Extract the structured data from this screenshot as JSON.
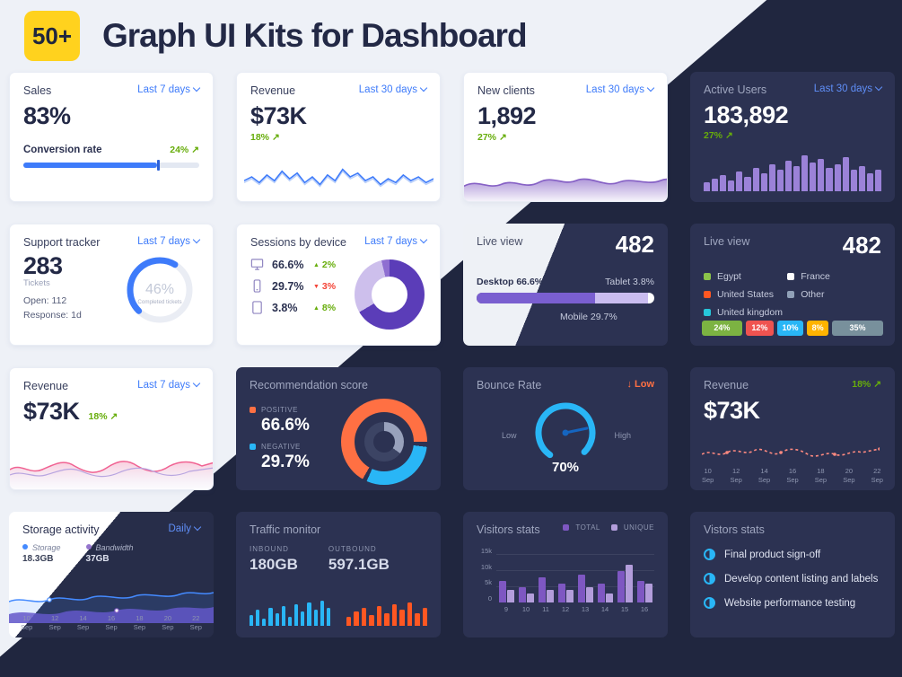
{
  "header": {
    "badge": "50+",
    "title": "Graph UI Kits for Dashboard"
  },
  "theme": {
    "accent_blue": "#3e7bfa",
    "green": "#67ad0b",
    "red": "#f44336",
    "purple": "#7e57c2",
    "orange": "#ff7043",
    "light_bg": "#eef1f7",
    "dark_bg": "#20263f",
    "card_dark": "#2c3252",
    "badge_yellow": "#ffd21e"
  },
  "cards": {
    "sales": {
      "title": "Sales",
      "period": "Last 7 days",
      "value": "83%",
      "metric_label": "Conversion rate",
      "metric_change": "24%",
      "progress_pct": 76
    },
    "revenue_line": {
      "title": "Revenue",
      "period": "Last 30 days",
      "value": "$73K",
      "change": "18%"
    },
    "new_clients": {
      "title": "New clients",
      "period": "Last 30 days",
      "value": "1,892",
      "change": "27%"
    },
    "active_users": {
      "title": "Active Users",
      "period": "Last 30 days",
      "value": "183,892",
      "change": "27%",
      "bars": [
        10,
        14,
        18,
        12,
        22,
        16,
        26,
        20,
        30,
        24,
        34,
        28,
        40,
        32,
        36,
        26,
        30,
        38,
        24,
        28,
        20,
        24
      ]
    },
    "support": {
      "title": "Support tracker",
      "period": "Last 7 days",
      "value": "283",
      "value_label": "Tickets",
      "open": "Open: 112",
      "response": "Response: 1d",
      "gauge_value": "46%",
      "gauge_label": "Completed tickets",
      "gauge_pct": 46
    },
    "sessions": {
      "title": "Sessions by device",
      "period": "Last 7 days",
      "items": [
        {
          "device": "desktop",
          "value": "66.6%",
          "change": "2%",
          "direction": "up"
        },
        {
          "device": "mobile",
          "value": "29.7%",
          "change": "3%",
          "direction": "down"
        },
        {
          "device": "tablet",
          "value": "3.8%",
          "change": "8%",
          "direction": "up"
        }
      ],
      "donut": {
        "desktop": 66.6,
        "mobile": 29.7,
        "tablet": 3.8
      }
    },
    "live_view_devices": {
      "title": "Live view",
      "value": "482",
      "desktop_label": "Desktop 66.6%",
      "tablet_label": "Tablet 3.8%",
      "mobile_label": "Mobile 29.7%",
      "segments": [
        {
          "name": "Desktop",
          "pct": 66.6,
          "color": "#7a5fd0"
        },
        {
          "name": "Mobile",
          "pct": 29.7,
          "color": "#cabdf0"
        },
        {
          "name": "Tablet",
          "pct": 3.8,
          "color": "#ffffff"
        }
      ]
    },
    "live_view_countries": {
      "title": "Live view",
      "value": "482",
      "legend": [
        {
          "label": "Egypt",
          "color": "#8bc34a"
        },
        {
          "label": "France",
          "color": "#ffffff"
        },
        {
          "label": "United States",
          "color": "#ff5722"
        },
        {
          "label": "Other",
          "color": "#90a0b7"
        },
        {
          "label": "United kingdom",
          "color": "#26c6da"
        }
      ],
      "chips": [
        {
          "label": "24%",
          "value": 24,
          "color": "#7cb342"
        },
        {
          "label": "12%",
          "value": 12,
          "color": "#ef5350"
        },
        {
          "label": "10%",
          "value": 10,
          "color": "#29b6f6"
        },
        {
          "label": "8%",
          "value": 8,
          "color": "#ffb300"
        },
        {
          "label": "35%",
          "value": 35,
          "color": "#78909c"
        }
      ]
    },
    "revenue_area": {
      "title": "Revenue",
      "period": "Last 7 days",
      "value": "$73K",
      "change": "18%"
    },
    "recommendation": {
      "title": "Recommendation score",
      "positive_label": "POSITIVE",
      "positive_value": "66.6%",
      "negative_label": "NEGATIVE",
      "negative_value": "29.7%"
    },
    "bounce": {
      "title": "Bounce Rate",
      "status": "Low",
      "low_label": "Low",
      "high_label": "High",
      "value": "70%",
      "pct": 70
    },
    "revenue_dark": {
      "title": "Revenue",
      "change": "18%",
      "value": "$73K",
      "x_days": [
        "10",
        "12",
        "14",
        "16",
        "18",
        "20",
        "22"
      ],
      "month": "Sep"
    },
    "storage": {
      "title": "Storage activity",
      "period": "Daily",
      "series": [
        {
          "label": "Storage",
          "value": "18.3GB",
          "color": "#448aff"
        },
        {
          "label": "Bandwidth",
          "value": "37GB",
          "color": "#9575cd"
        }
      ],
      "x_days": [
        "10",
        "12",
        "14",
        "16",
        "18",
        "20",
        "22"
      ],
      "month": "Sep"
    },
    "traffic": {
      "title": "Traffic monitor",
      "inbound_label": "INBOUND",
      "inbound_value": "180GB",
      "outbound_label": "OUTBOUND",
      "outbound_value": "597.1GB",
      "inbound_bars": [
        12,
        18,
        8,
        20,
        14,
        22,
        10,
        24,
        16,
        26,
        18,
        28,
        20
      ],
      "outbound_bars": [
        10,
        16,
        20,
        12,
        22,
        14,
        24,
        18,
        26,
        14,
        20
      ]
    },
    "visitors": {
      "title": "Visitors stats",
      "legend": [
        {
          "label": "TOTAL",
          "color": "#7e57c2"
        },
        {
          "label": "UNIQUE",
          "color": "#b39ddb"
        }
      ],
      "y_labels": [
        "15k",
        "10k",
        "5k",
        "0"
      ],
      "x_labels": [
        "9",
        "10",
        "11",
        "12",
        "13",
        "14",
        "15",
        "16"
      ],
      "total_k": [
        7,
        5,
        8,
        6,
        9,
        6,
        10,
        7
      ],
      "unique_k": [
        4,
        3,
        4,
        4,
        5,
        3,
        12,
        6
      ]
    },
    "tasks": {
      "title": "Vistors stats",
      "items": [
        "Final product sign-off",
        "Develop content listing and labels",
        "Website performance testing"
      ]
    }
  }
}
